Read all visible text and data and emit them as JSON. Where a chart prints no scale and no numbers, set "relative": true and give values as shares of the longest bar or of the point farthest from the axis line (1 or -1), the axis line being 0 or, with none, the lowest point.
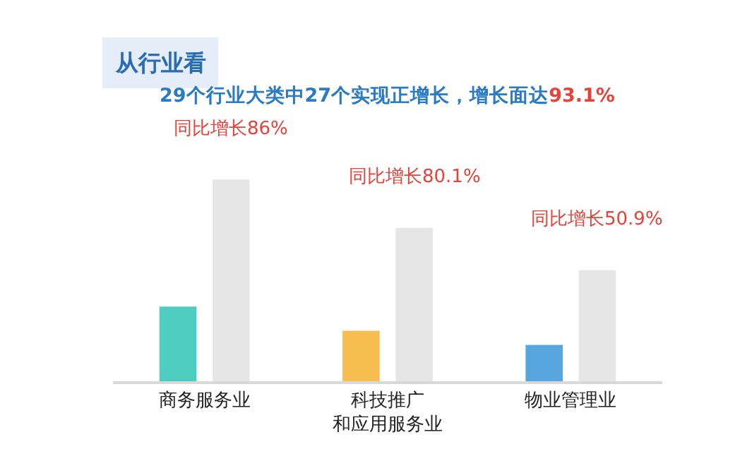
{
  "chart_data": {
    "type": "bar",
    "relative": true,
    "title": "从行业看",
    "subtitle": "29个行业大类中27个实现正增长，增长面达93.1%",
    "categories": [
      "商务服务业",
      "科技推广和应用服务业",
      "物业管理业"
    ],
    "series": [
      {
        "colors": [
          "#4ecdc0",
          "#f7bd4f",
          "#58a6e0"
        ],
        "values": [
          0.37,
          0.25,
          0.18
        ]
      },
      {
        "color": "#e6e6e6",
        "values": [
          1,
          0.76,
          0.55
        ]
      }
    ],
    "annotations": [
      "同比增长86%",
      "同比增长80.1%",
      "同比增长50.9%"
    ]
  }
}
